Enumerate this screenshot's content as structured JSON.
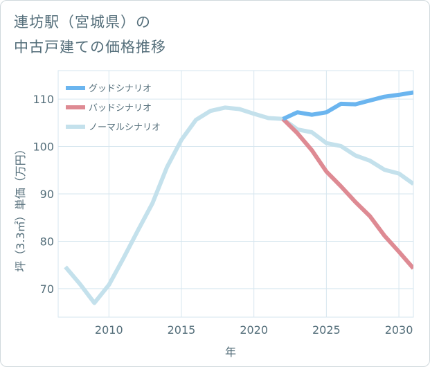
{
  "title": {
    "line1": "連坊駅（宮城県）の",
    "line2": "中古戸建ての価格推移"
  },
  "colors": {
    "good": "#6bb5ef",
    "bad": "#de8a93",
    "normal": "#c4e1ec",
    "grid": "#d6e6ef",
    "text": "#546e7a"
  },
  "chart_data": {
    "type": "line",
    "title": "連坊駅（宮城県）の中古戸建ての価格推移",
    "xlabel": "年",
    "ylabel": "坪（3.3㎡）単価（万円）",
    "xlim": [
      2006.5,
      2031
    ],
    "ylim": [
      64,
      116
    ],
    "xticks": [
      2010,
      2015,
      2020,
      2025,
      2030
    ],
    "yticks": [
      70,
      80,
      90,
      100,
      110
    ],
    "grid": true,
    "legend_position": "top-left",
    "series": [
      {
        "name": "グッドシナリオ",
        "key": "good",
        "x": [
          2022,
          2023,
          2024,
          2025,
          2026,
          2027,
          2028,
          2029,
          2030,
          2031
        ],
        "values": [
          105.8,
          107.2,
          106.7,
          107.2,
          109.0,
          108.9,
          109.7,
          110.5,
          110.9,
          111.4
        ]
      },
      {
        "name": "バッドシナリオ",
        "key": "bad",
        "x": [
          2022,
          2023,
          2024,
          2025,
          2026,
          2027,
          2028,
          2029,
          2030,
          2031
        ],
        "values": [
          105.8,
          102.8,
          99.2,
          94.7,
          91.6,
          88.3,
          85.3,
          81.2,
          77.8,
          74.3
        ]
      },
      {
        "name": "ノーマルシナリオ",
        "key": "normal",
        "x": [
          2007,
          2008,
          2009,
          2010,
          2011,
          2012,
          2013,
          2014,
          2015,
          2016,
          2017,
          2018,
          2019,
          2020,
          2021,
          2022,
          2023,
          2024,
          2025,
          2026,
          2027,
          2028,
          2029,
          2030,
          2031
        ],
        "values": [
          74.6,
          71.0,
          67.0,
          70.8,
          76.4,
          82.3,
          88.0,
          95.6,
          101.4,
          105.6,
          107.5,
          108.2,
          107.9,
          106.9,
          106.0,
          105.8,
          103.6,
          103.0,
          100.7,
          100.1,
          98.1,
          97.0,
          95.1,
          94.3,
          92.1
        ]
      }
    ]
  }
}
